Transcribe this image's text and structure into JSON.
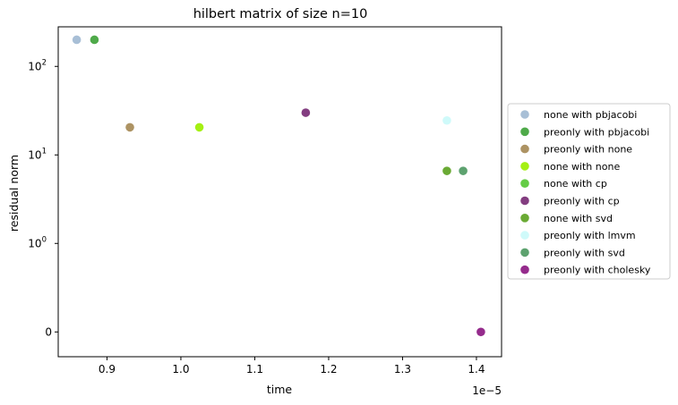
{
  "chart_data": {
    "type": "scatter",
    "title": "hilbert matrix of size n=10",
    "xlabel": "time",
    "ylabel": "residual norm",
    "x_offset_label": "1e−5",
    "x_scale": 1e-05,
    "xlim": [
      0.834,
      1.434
    ],
    "x_ticks": [
      0.9,
      1.0,
      1.1,
      1.2,
      1.3,
      1.4
    ],
    "x_tick_labels": [
      "0.9",
      "1.0",
      "1.1",
      "1.2",
      "1.3",
      "1.4"
    ],
    "y_scale": "symlog",
    "y_linthresh": 1,
    "ylim": [
      -0.28,
      280
    ],
    "y_ticks": [
      0,
      1,
      10,
      100
    ],
    "y_tick_labels": [
      {
        "base": "0",
        "exp": ""
      },
      {
        "base": "10",
        "exp": "0"
      },
      {
        "base": "10",
        "exp": "1"
      },
      {
        "base": "10",
        "exp": "2"
      }
    ],
    "grid": false,
    "legend_placement": "right-outside",
    "series": [
      {
        "name": "none with pbjacobi",
        "color": "#a8bfd6",
        "points": [
          {
            "x": 0.859,
            "y": 200
          }
        ]
      },
      {
        "name": "preonly with pbjacobi",
        "color": "#4faa4a",
        "points": [
          {
            "x": 0.883,
            "y": 200
          }
        ]
      },
      {
        "name": "preonly with none",
        "color": "#ad9363",
        "points": [
          {
            "x": 0.931,
            "y": 20.5
          }
        ]
      },
      {
        "name": "none with none",
        "color": "#a4f013",
        "points": [
          {
            "x": 1.025,
            "y": 20.5
          }
        ]
      },
      {
        "name": "none with cp",
        "color": "#64cc45",
        "points": []
      },
      {
        "name": "preonly with cp",
        "color": "#833d80",
        "points": [
          {
            "x": 1.169,
            "y": 30
          }
        ]
      },
      {
        "name": "none with svd",
        "color": "#6aaa34",
        "points": [
          {
            "x": 1.36,
            "y": 6.6
          }
        ]
      },
      {
        "name": "preonly with lmvm",
        "color": "#cffafa",
        "points": [
          {
            "x": 1.36,
            "y": 24.5
          }
        ]
      },
      {
        "name": "preonly with svd",
        "color": "#5da26f",
        "points": [
          {
            "x": 1.382,
            "y": 6.6
          }
        ]
      },
      {
        "name": "preonly with cholesky",
        "color": "#952b8c",
        "points": [
          {
            "x": 1.406,
            "y": 0
          }
        ]
      }
    ]
  }
}
